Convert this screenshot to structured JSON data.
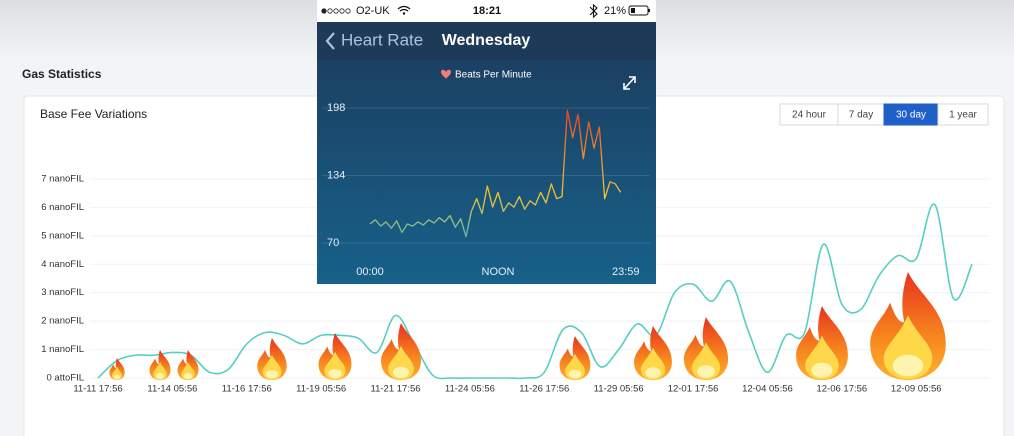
{
  "header": {
    "title": "Gas Statistics"
  },
  "range_selector": {
    "options": [
      "24 hour",
      "7 day",
      "30 day",
      "1 year"
    ],
    "selected": "30 day"
  },
  "phone": {
    "status": {
      "carrier": "O2-UK",
      "time": "18:21",
      "battery": "21%"
    },
    "nav": {
      "back": "Heart Rate",
      "title": "Wednesday"
    }
  },
  "chart_data": [
    {
      "type": "line",
      "title": "Base Fee Variations",
      "categories": [
        "11-11 17:56",
        null,
        null,
        null,
        "11-14 05:56",
        null,
        null,
        null,
        "11-16 17:56",
        null,
        null,
        null,
        "11-19 05:56",
        null,
        null,
        null,
        "11-21 17:56",
        null,
        null,
        null,
        "11-24 05:56",
        null,
        null,
        null,
        "11-26 17:56",
        null,
        null,
        null,
        "11-29 05:56",
        null,
        null,
        null,
        "12-01 17:56",
        null,
        null,
        null,
        "12-04 05:56",
        null,
        null,
        null,
        "12-06 17:56",
        null,
        null,
        null,
        "12-09 05:56",
        null,
        null,
        null
      ],
      "values": [
        0,
        0.6,
        0.8,
        0.8,
        0.9,
        0.8,
        0.2,
        0.3,
        1.2,
        1.6,
        1.5,
        1.2,
        1.5,
        1.5,
        1.4,
        0.9,
        2.2,
        1.2,
        0.1,
        0,
        0,
        0,
        0,
        0,
        0.2,
        1.7,
        1.6,
        0.4,
        1.0,
        1.9,
        1.5,
        3.0,
        3.3,
        2.7,
        3.4,
        1.6,
        0.2,
        1.5,
        1.6,
        4.7,
        2.6,
        2.4,
        3.6,
        4.3,
        4.2,
        6.1,
        2.8,
        4.0
      ],
      "color": "#56cfc3",
      "ylim": [
        0,
        7
      ],
      "yticks": [
        {
          "value": 0,
          "label": "0 attoFIL"
        },
        {
          "value": 1,
          "label": "1 nanoFIL"
        },
        {
          "value": 2,
          "label": "2 nanoFIL"
        },
        {
          "value": 3,
          "label": "3 nanoFIL"
        },
        {
          "value": 4,
          "label": "4 nanoFIL"
        },
        {
          "value": 5,
          "label": "5 nanoFIL"
        },
        {
          "value": 6,
          "label": "6 nanoFIL"
        },
        {
          "value": 7,
          "label": "7 nanoFIL"
        }
      ],
      "grid": true
    },
    {
      "type": "line",
      "title": "Beats Per Minute",
      "x": [
        0,
        0.5,
        1,
        1.5,
        2,
        2.5,
        3,
        3.5,
        4,
        4.5,
        5,
        5.5,
        6,
        6.5,
        7,
        7.5,
        8,
        8.5,
        9,
        9.5,
        10,
        10.5,
        11,
        11.5,
        12,
        12.5,
        13,
        13.5,
        14,
        14.5,
        15,
        15.5,
        16,
        16.5,
        17,
        17.5,
        18,
        18.5,
        19,
        19.5,
        20,
        20.5,
        21,
        21.5,
        22,
        22.5,
        23,
        23.5
      ],
      "values": [
        88,
        92,
        86,
        90,
        84,
        91,
        80,
        88,
        86,
        90,
        87,
        92,
        89,
        94,
        90,
        96,
        85,
        93,
        76,
        100,
        112,
        98,
        124,
        104,
        118,
        100,
        108,
        104,
        114,
        102,
        110,
        106,
        118,
        108,
        126,
        112,
        114,
        196,
        170,
        192,
        150,
        185,
        160,
        180,
        112,
        128,
        126,
        118
      ],
      "colors": [
        "#4fb3c9",
        "#f3c634",
        "#f08a2c",
        "#e8412f"
      ],
      "xlim": [
        0,
        24
      ],
      "xticks": [
        {
          "value": 0,
          "label": "00:00"
        },
        {
          "value": 12,
          "label": "NOON"
        },
        {
          "value": 23.98,
          "label": "23:59"
        }
      ],
      "ylim": [
        70,
        198
      ],
      "yticks": [
        70,
        134,
        198
      ],
      "grid": true
    }
  ]
}
